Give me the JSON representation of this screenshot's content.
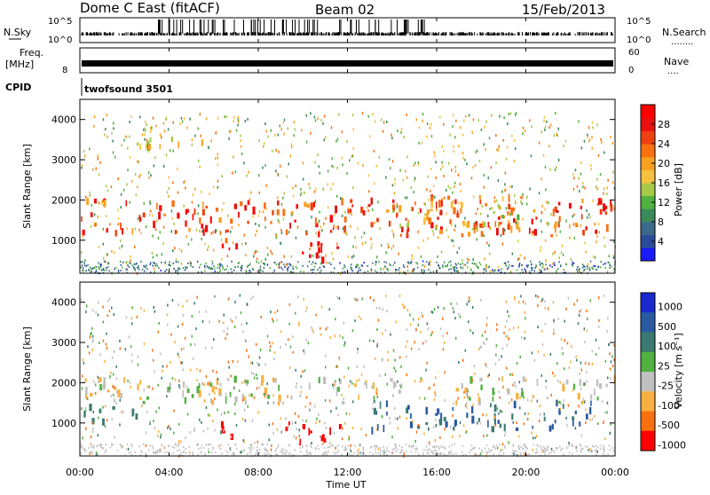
{
  "header": {
    "station": "Dome C East (fitACF)",
    "beam": "Beam 02",
    "date": "15/Feb/2013"
  },
  "top_panels": {
    "nsky": {
      "left_label": "N.Sky",
      "left_ticks": [
        "10^5",
        "10^0"
      ],
      "right_ticks": [
        "10^5",
        "10^0"
      ],
      "right_label": "N.Search",
      "right_dots": "........"
    },
    "freq": {
      "left_label_line1": "Freq.",
      "left_label_line2": "[MHz]",
      "left_tick": "8",
      "right_ticks": [
        "60",
        "0"
      ],
      "right_label": "Nave",
      "right_dots": "...."
    },
    "cpid": {
      "label": "CPID",
      "program": "twofsound 3501"
    }
  },
  "axes": {
    "ylabel": "Slant Range [km]",
    "xlabel": "Time UT",
    "yticks": [
      "1000",
      "2000",
      "3000",
      "4000"
    ],
    "xticks": [
      "00:00",
      "04:00",
      "08:00",
      "12:00",
      "16:00",
      "20:00",
      "00:00"
    ]
  },
  "colorbars": {
    "power": {
      "label": "Power [dB]",
      "ticks": [
        "4",
        "8",
        "12",
        "16",
        "20",
        "24",
        "28"
      ],
      "colors": [
        "#1a1aff",
        "#2a4a9a",
        "#3a6a8a",
        "#3a8a5a",
        "#50b040",
        "#a8c84a",
        "#f8c040",
        "#f8a020",
        "#f87010",
        "#f04010",
        "#e81010",
        "#ff0000"
      ]
    },
    "velocity": {
      "label": "Velocity [m s⁻¹]",
      "ticks": [
        "1000",
        "500",
        "100",
        "25",
        "-25",
        "-100",
        "-500",
        "-1000"
      ],
      "colors": [
        "#1a2ad0",
        "#2a5aa0",
        "#3a7a70",
        "#50b040",
        "#c0c0c0",
        "#f8b040",
        "#f87010",
        "#ff0000"
      ]
    }
  },
  "chart_data": [
    {
      "type": "heatmap",
      "panel": "power",
      "title": "Dome C East (fitACF) Beam 02 15/Feb/2013",
      "xlabel": "Time UT",
      "ylabel": "Slant Range [km]",
      "xlim": [
        0,
        24
      ],
      "ylim": [
        180,
        4500
      ],
      "colorbar": "Power [dB]",
      "clim": [
        0,
        30
      ],
      "features": [
        {
          "t_start": 0,
          "t_end": 24,
          "r_start": 1100,
          "r_end": 2000,
          "value": 24
        },
        {
          "t_start": 6.3,
          "t_end": 7.3,
          "r_start": 600,
          "r_end": 1000,
          "value": 26
        },
        {
          "t_start": 9.5,
          "t_end": 11.7,
          "r_start": 500,
          "r_end": 1000,
          "value": 28
        },
        {
          "t_start": 14,
          "t_end": 20,
          "r_start": 1300,
          "r_end": 2100,
          "value": 18
        },
        {
          "t_start": 2.5,
          "t_end": 5.5,
          "r_start": 3300,
          "r_end": 3800,
          "value": 14
        }
      ]
    },
    {
      "type": "heatmap",
      "panel": "velocity",
      "xlabel": "Time UT",
      "ylabel": "Slant Range [km]",
      "xlim": [
        0,
        24
      ],
      "ylim": [
        180,
        4500
      ],
      "colorbar": "Velocity [m s⁻¹]",
      "clim": [
        -1000,
        1000
      ],
      "features": [
        {
          "t_start": 0,
          "t_end": 24,
          "r_start": 1500,
          "r_end": 2100,
          "value": 0
        },
        {
          "t_start": 0,
          "t_end": 2.5,
          "r_start": 1000,
          "r_end": 1400,
          "value": 100
        },
        {
          "t_start": 6.3,
          "t_end": 7.3,
          "r_start": 600,
          "r_end": 1000,
          "value": -500
        },
        {
          "t_start": 9,
          "t_end": 11.7,
          "r_start": 500,
          "r_end": 1000,
          "value": -500
        },
        {
          "t_start": 13,
          "t_end": 23,
          "r_start": 800,
          "r_end": 1500,
          "value": 300
        }
      ]
    }
  ]
}
